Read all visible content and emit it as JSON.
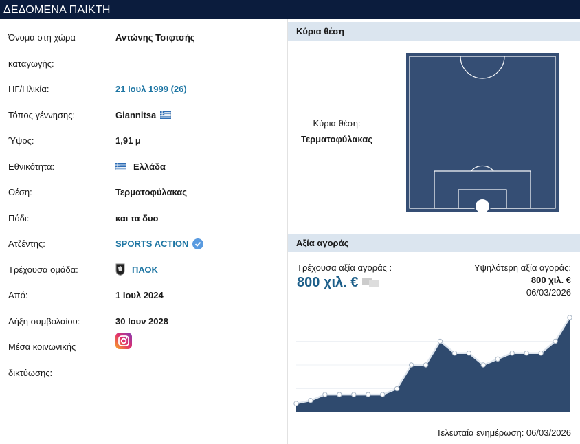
{
  "header": {
    "title": "ΔΕΔΟΜΕΝΑ ΠΑΙΚΤΗ"
  },
  "player_info": {
    "rows": [
      {
        "label": "Όνομα στη χώρα καταγωγής:",
        "value": "Αντώνης Τσιφτσής"
      },
      {
        "label": "ΗΓ/Ηλικία:",
        "value": "21 Ιουλ 1999 (26)"
      },
      {
        "label": "Τόπος γέννησης:",
        "value": "Giannitsa"
      },
      {
        "label": "Ύψος:",
        "value": "1,91 μ"
      },
      {
        "label": "Εθνικότητα:",
        "value": "Ελλάδα"
      },
      {
        "label": "Θέση:",
        "value": "Τερματοφύλακας"
      },
      {
        "label": "Πόδι:",
        "value": "και τα δυο"
      },
      {
        "label": "Ατζέντης:",
        "value": "SPORTS ACTION"
      },
      {
        "label": "Τρέχουσα ομάδα:",
        "value": "ΠΑΟΚ"
      },
      {
        "label": "Από:",
        "value": "1 Ιουλ 2024"
      },
      {
        "label": "Λήξη συμβολαίου:",
        "value": "30 Ιουν 2028"
      },
      {
        "label": "Μέσα κοινωνικής δικτύωσης:",
        "value": ""
      }
    ]
  },
  "position": {
    "title": "Κύρια θέση",
    "label": "Κύρια θέση:",
    "value": "Τερματοφύλακας"
  },
  "market_value": {
    "title": "Αξία αγοράς",
    "current_label": "Τρέχουσα αξία αγοράς :",
    "current_value": "800 χιλ. €",
    "highest_label": "Υψηλότερη αξία αγοράς:",
    "highest_value": "800 χιλ. €",
    "highest_date": "06/03/2026",
    "last_update": "Τελευταία ενημέρωση: 06/03/2026",
    "chart_data": {
      "type": "area",
      "values": [
        75,
        100,
        150,
        150,
        150,
        150,
        150,
        200,
        400,
        400,
        600,
        500,
        500,
        400,
        450,
        500,
        500,
        500,
        600,
        800
      ],
      "ylim": [
        0,
        800
      ],
      "color": "#2f4a6e"
    }
  }
}
